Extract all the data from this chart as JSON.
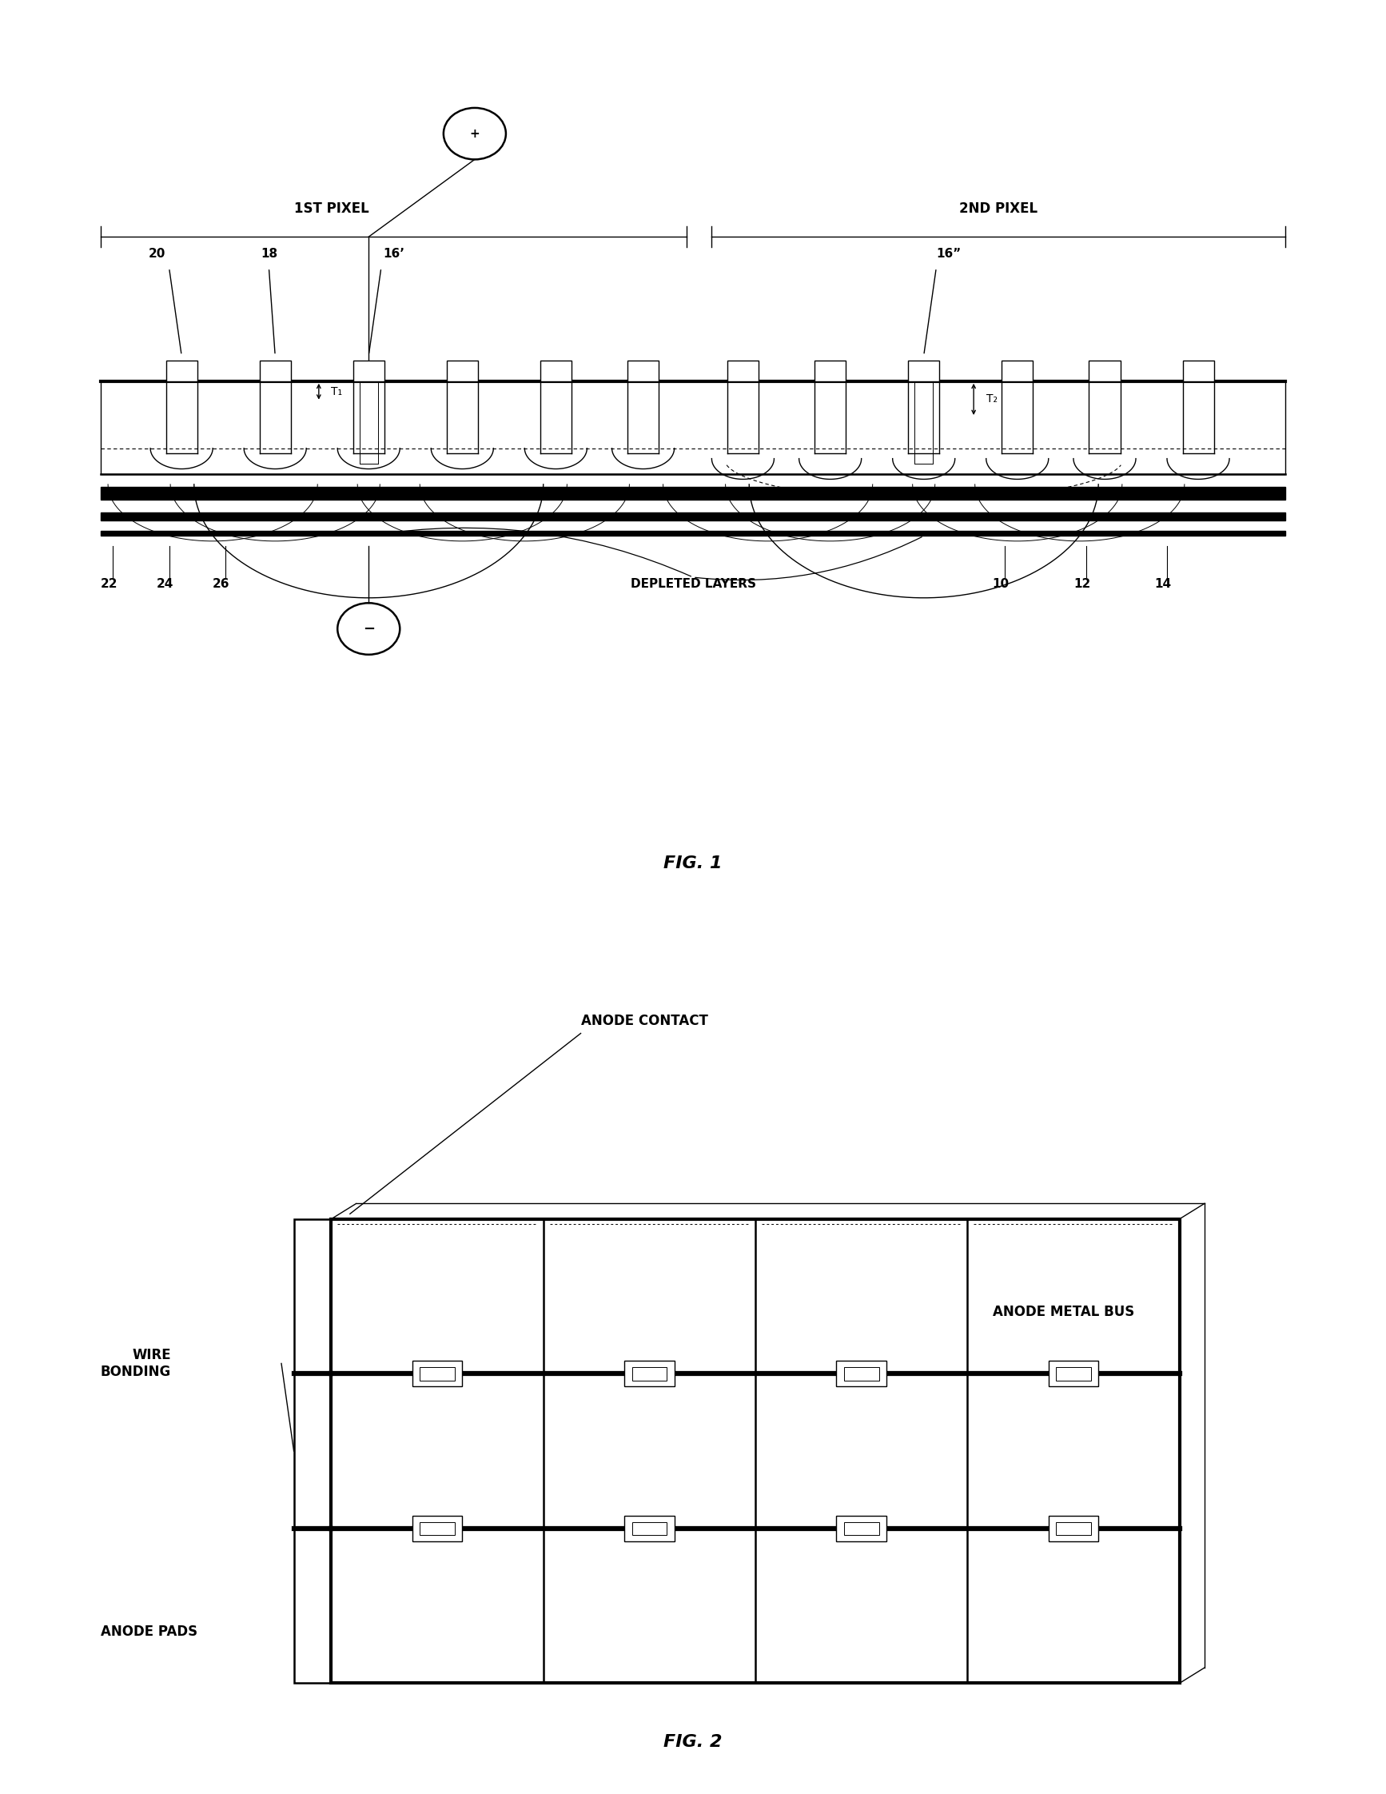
{
  "fig_width": 17.34,
  "fig_height": 22.44,
  "bg_color": "#ffffff",
  "lc": "#000000",
  "lw_thin": 1.0,
  "lw_med": 1.8,
  "lw_thick": 3.0,
  "lw_vthick": 4.5,
  "fig1_label": "FIG. 1",
  "fig2_label": "FIG. 2",
  "pixel1_label": "1ST PIXEL",
  "pixel2_label": "2ND PIXEL",
  "plus_symbol": "+",
  "minus_symbol": "−",
  "depleted_layers": "DEPLETED LAYERS",
  "anode_contact": "ANODE CONTACT",
  "anode_metal_bus": "ANODE METAL BUS",
  "wire_bonding": "WIRE\nBONDING",
  "anode_pads": "ANODE PADS",
  "ref_16p": "16’",
  "ref_16pp": "16”",
  "ref_20": "20",
  "ref_18": "18",
  "ref_22": "22",
  "ref_24": "24",
  "ref_26": "26",
  "ref_10": "10",
  "ref_12": "12",
  "ref_14": "14",
  "ref_T1": "T₁",
  "ref_T2": "T₂"
}
